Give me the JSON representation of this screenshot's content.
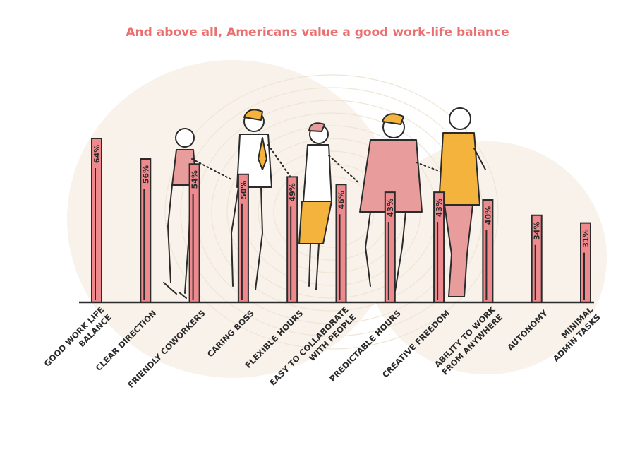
{
  "title": "And above all, Americans value a good work-life balance",
  "colors": {
    "title": "#ec6f6f",
    "bar_fill": "#ee8a8d",
    "bar_stroke": "#2b2b2b",
    "person_pink": "#e99c9c",
    "person_yellow": "#f3b33c",
    "background_blob": "#f8f2ea",
    "axis": "#2b2b2b"
  },
  "chart_data": {
    "type": "bar",
    "title": "And above all, Americans value a good work-life balance",
    "categories": [
      [
        "GOOD WORK LIFE",
        "BALANCE"
      ],
      [
        "CLEAR DIRECTION"
      ],
      [
        "FRIENDLY COWORKERS"
      ],
      [
        "CARING BOSS"
      ],
      [
        "FLEXIBLE HOURS"
      ],
      [
        "EASY TO COLLABORATE",
        "WITH PEOPLE"
      ],
      [
        "PREDICTABLE HOURS"
      ],
      [
        "CREATIVE FREEDOM"
      ],
      [
        "ABILITY TO WORK",
        "FROM ANYWHERE"
      ],
      [
        "AUTONOMY"
      ],
      [
        "MINIMAL",
        "ADMIN TASKS"
      ]
    ],
    "values": [
      64,
      56,
      54,
      50,
      49,
      46,
      43,
      43,
      40,
      34,
      31
    ],
    "value_labels": [
      "64%",
      "56%",
      "54%",
      "50%",
      "49%",
      "46%",
      "43%",
      "43%",
      "40%",
      "34%",
      "31%"
    ],
    "ylim": [
      0,
      64
    ],
    "xlabel": "",
    "ylabel": "",
    "grid": false,
    "legend": "none"
  }
}
